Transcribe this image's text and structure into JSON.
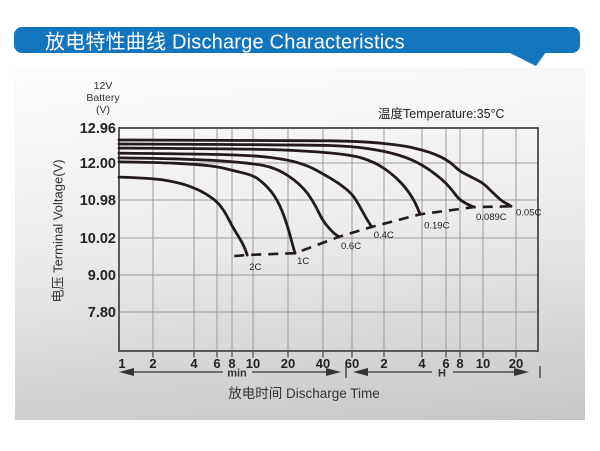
{
  "header": {
    "title": "放电特性曲线 Discharge Characteristics"
  },
  "colors": {
    "banner_blue": "#1375bd",
    "curve_black": "#241a1c",
    "grid_gray": "#9b9b9b",
    "axis_gray": "#4a4a4a",
    "text_dark": "#222222"
  },
  "chart_data": {
    "type": "line",
    "title": "放电特性曲线 Discharge Characteristics",
    "xlabel": "放电时间 Discharge Time",
    "ylabel": "电压 Terminal Voltage(V)",
    "annotation_temperature": "温度Temperature:35°C",
    "y_axis_corner_label_lines": [
      "12V",
      "Battery",
      "(V)"
    ],
    "x_scale": "log",
    "grid": true,
    "xlim_minutes": [
      1,
      1800
    ],
    "ylim_volts": [
      6.6,
      12.96
    ],
    "x_unit_labels": [
      "min",
      "H"
    ],
    "x_ticks": [
      {
        "label": "1",
        "t_min": 1
      },
      {
        "label": "2",
        "t_min": 2
      },
      {
        "label": "4",
        "t_min": 4
      },
      {
        "label": "6",
        "t_min": 6
      },
      {
        "label": "8",
        "t_min": 8
      },
      {
        "label": "10",
        "t_min": 10
      },
      {
        "label": "20",
        "t_min": 20
      },
      {
        "label": "40",
        "t_min": 40
      },
      {
        "label": "60",
        "t_min": 60
      },
      {
        "label": "2",
        "t_min": 120
      },
      {
        "label": "4",
        "t_min": 240
      },
      {
        "label": "6",
        "t_min": 360
      },
      {
        "label": "8",
        "t_min": 480
      },
      {
        "label": "10",
        "t_min": 600
      },
      {
        "label": "20",
        "t_min": 1200
      }
    ],
    "y_ticks": [
      {
        "label": "12.96",
        "v": 12.96
      },
      {
        "label": "12.00",
        "v": 12.0
      },
      {
        "label": "10.98",
        "v": 10.98
      },
      {
        "label": "10.02",
        "v": 10.02
      },
      {
        "label": "9.00",
        "v": 9.0
      },
      {
        "label": "7.80",
        "v": 7.8
      }
    ],
    "series": [
      {
        "name": "2C",
        "points": [
          [
            1,
            11.61
          ],
          [
            2,
            11.58
          ],
          [
            3,
            11.47
          ],
          [
            4,
            11.32
          ],
          [
            5,
            11.14
          ],
          [
            6,
            10.94
          ],
          [
            7,
            10.68
          ],
          [
            8,
            10.32
          ],
          [
            8.8,
            9.95
          ],
          [
            9.2,
            9.72
          ],
          [
            9.4,
            9.55
          ]
        ]
      },
      {
        "name": "1C",
        "points": [
          [
            1,
            12.03
          ],
          [
            2,
            12.02
          ],
          [
            4,
            11.97
          ],
          [
            6,
            11.9
          ],
          [
            8,
            11.8
          ],
          [
            10,
            11.66
          ],
          [
            12,
            11.48
          ],
          [
            14,
            11.26
          ],
          [
            16,
            11.0
          ],
          [
            18,
            10.68
          ],
          [
            20,
            10.28
          ],
          [
            21.8,
            9.85
          ],
          [
            22.6,
            9.68
          ],
          [
            23,
            9.6
          ]
        ]
      },
      {
        "name": "0.6C",
        "points": [
          [
            1,
            12.14
          ],
          [
            2,
            12.13
          ],
          [
            4,
            12.1
          ],
          [
            8,
            12.04
          ],
          [
            12,
            11.95
          ],
          [
            16,
            11.83
          ],
          [
            20,
            11.66
          ],
          [
            25,
            11.42
          ],
          [
            30,
            11.14
          ],
          [
            35,
            10.8
          ],
          [
            40,
            10.45
          ],
          [
            45,
            10.2
          ],
          [
            48,
            10.1
          ],
          [
            50,
            10.05
          ]
        ]
      },
      {
        "name": "0.4C",
        "points": [
          [
            1,
            12.27
          ],
          [
            4,
            12.25
          ],
          [
            10,
            12.21
          ],
          [
            20,
            12.09
          ],
          [
            30,
            11.92
          ],
          [
            40,
            11.7
          ],
          [
            50,
            11.44
          ],
          [
            60,
            11.15
          ],
          [
            70,
            10.85
          ],
          [
            80,
            10.56
          ],
          [
            87,
            10.4
          ],
          [
            92,
            10.3
          ]
        ]
      },
      {
        "name": "0.19C",
        "points": [
          [
            1,
            12.41
          ],
          [
            10,
            12.39
          ],
          [
            30,
            12.33
          ],
          [
            60,
            12.22
          ],
          [
            90,
            12.06
          ],
          [
            120,
            11.86
          ],
          [
            150,
            11.6
          ],
          [
            180,
            11.3
          ],
          [
            205,
            11.0
          ],
          [
            220,
            10.8
          ],
          [
            232,
            10.62
          ]
        ]
      },
      {
        "name": "0.089C",
        "points": [
          [
            1,
            12.52
          ],
          [
            30,
            12.5
          ],
          [
            60,
            12.46
          ],
          [
            120,
            12.33
          ],
          [
            180,
            12.16
          ],
          [
            240,
            11.95
          ],
          [
            300,
            11.7
          ],
          [
            360,
            11.45
          ],
          [
            420,
            11.2
          ],
          [
            470,
            11.0
          ],
          [
            520,
            10.86
          ],
          [
            550,
            10.8
          ]
        ]
      },
      {
        "name": "0.05C",
        "points": [
          [
            1,
            12.63
          ],
          [
            30,
            12.62
          ],
          [
            60,
            12.6
          ],
          [
            120,
            12.54
          ],
          [
            180,
            12.46
          ],
          [
            240,
            12.36
          ],
          [
            300,
            12.24
          ],
          [
            360,
            12.1
          ],
          [
            420,
            11.94
          ],
          [
            480,
            11.77
          ],
          [
            540,
            11.6
          ],
          [
            600,
            11.45
          ],
          [
            700,
            11.25
          ],
          [
            800,
            11.08
          ],
          [
            900,
            10.95
          ],
          [
            1000,
            10.88
          ],
          [
            1080,
            10.82
          ]
        ]
      }
    ],
    "cutoff_line": {
      "style": "dashed",
      "points": [
        [
          8.2,
          9.52
        ],
        [
          9.4,
          9.55
        ],
        [
          23,
          9.6
        ],
        [
          50,
          10.05
        ],
        [
          92,
          10.3
        ],
        [
          232,
          10.62
        ],
        [
          550,
          10.8
        ],
        [
          1080,
          10.82
        ]
      ]
    }
  }
}
